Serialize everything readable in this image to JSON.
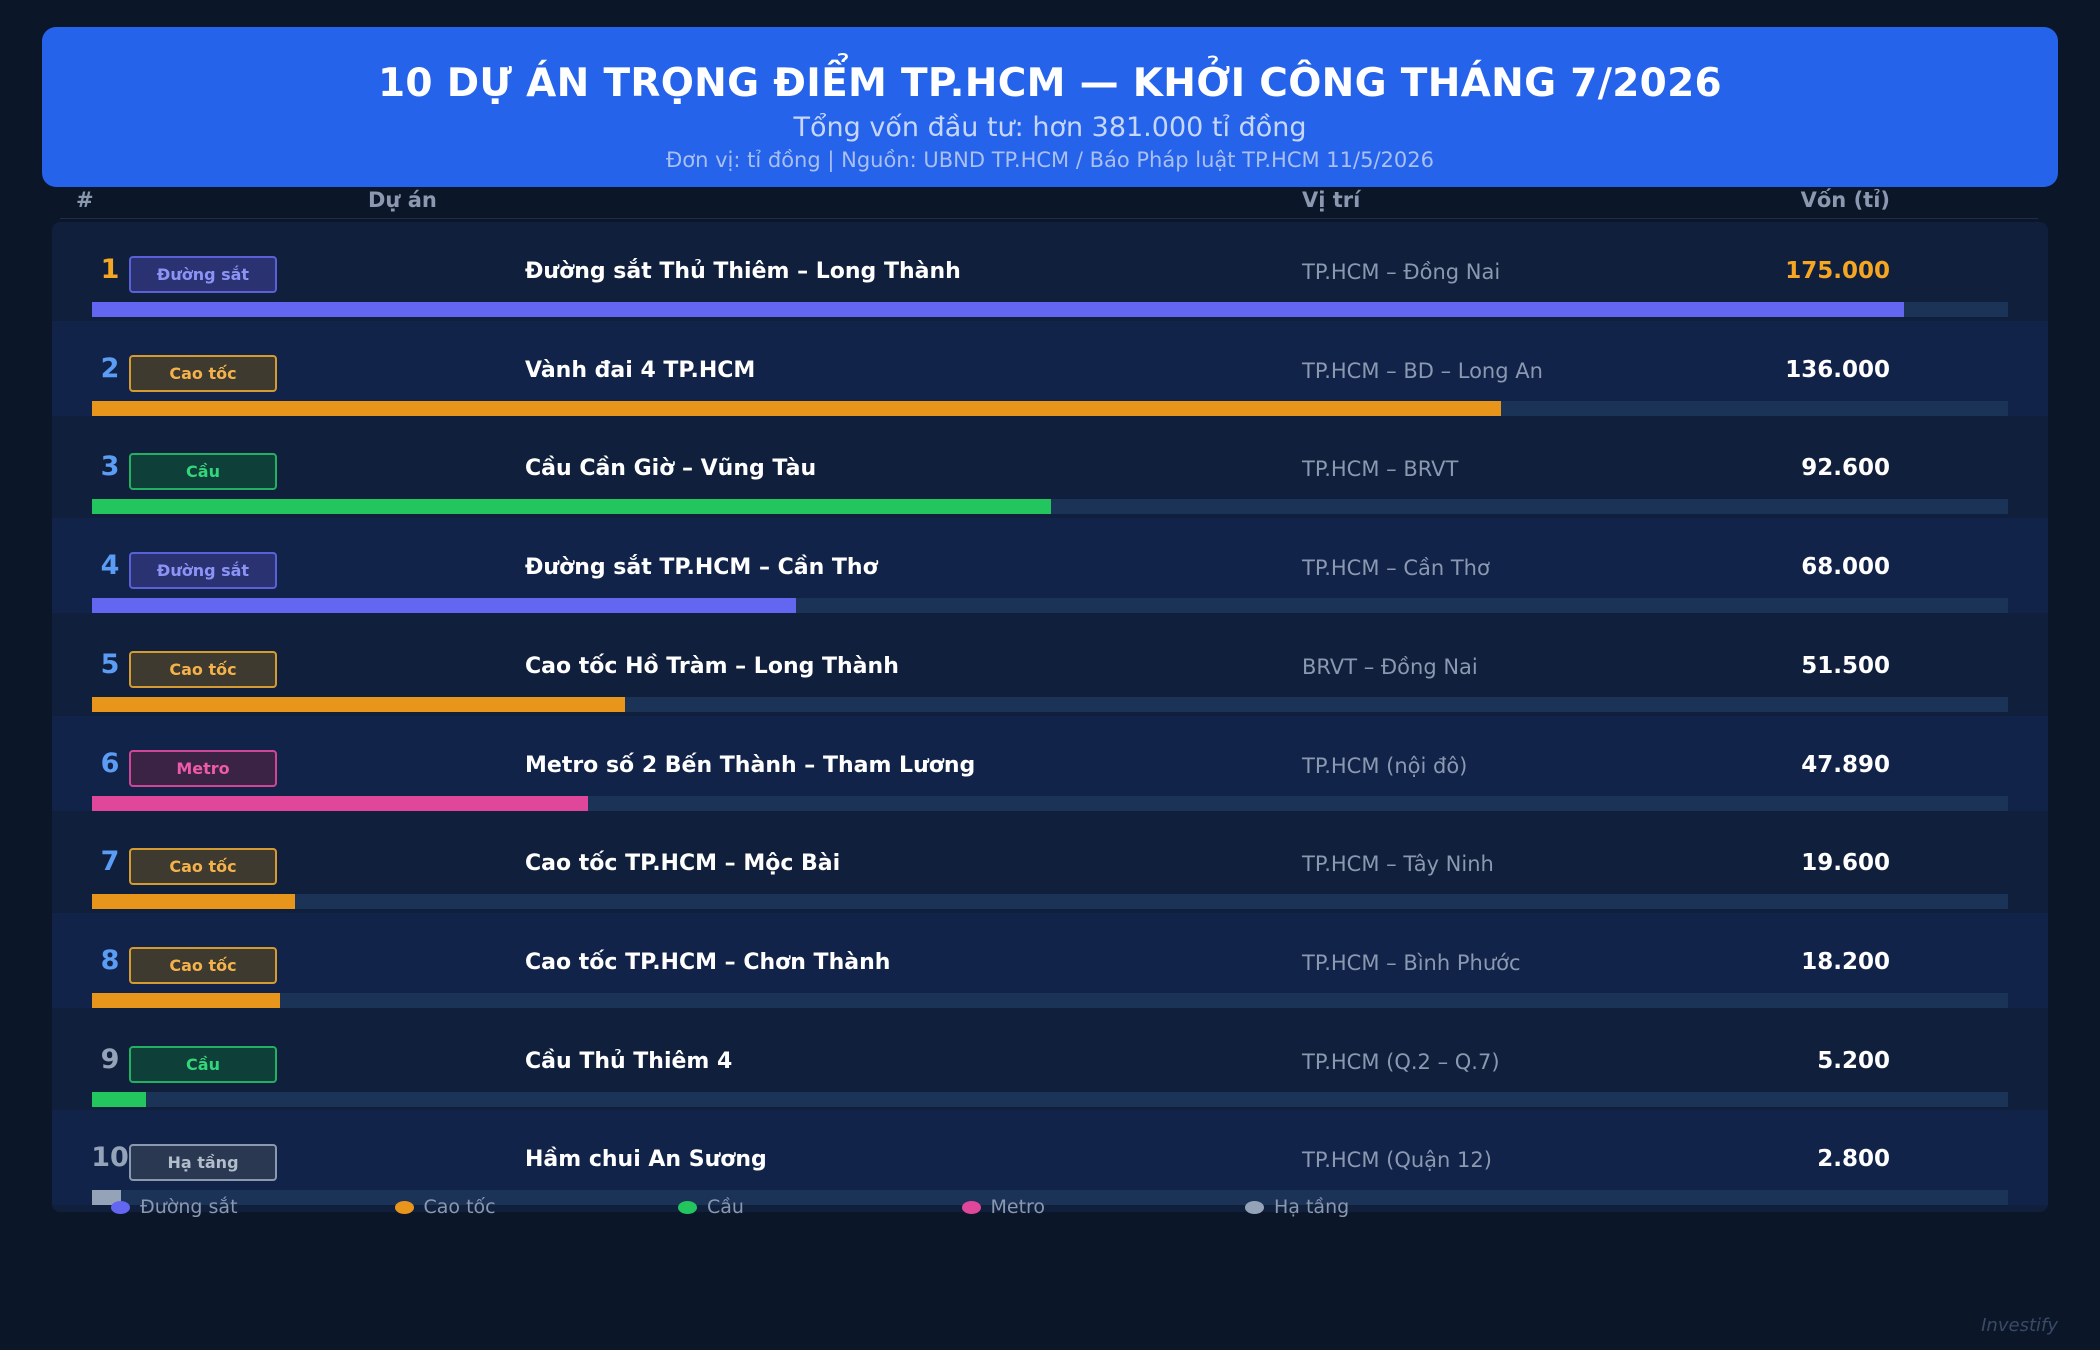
{
  "header": {
    "title": "10 DỰ ÁN TRỌNG ĐIỂM TP.HCM — KHỞI CÔNG THÁNG 7/2026",
    "subtitle": "Tổng vốn đầu tư: hơn 381.000 tỉ đồng",
    "source": "Đơn vị: tỉ đồng  |  Nguồn: UBND TP.HCM / Báo Pháp luật TP.HCM 11/5/2026"
  },
  "columns": {
    "rank": "#",
    "project": "Dự án",
    "location": "Vị trí",
    "capital": "Vốn (tỉ)"
  },
  "categories": {
    "duong_sat": {
      "label": "Đường sắt",
      "color": "#6366f1",
      "text": "#8b93f5",
      "bg": "#2a3272",
      "border": "#5a61d8"
    },
    "cao_toc": {
      "label": "Cao tốc",
      "color": "#e8951c",
      "text": "#f4b24a",
      "bg": "#3f3a30",
      "border": "#d59a30"
    },
    "cau": {
      "label": "Cầu",
      "color": "#22c55e",
      "text": "#34d67a",
      "bg": "#0f3f39",
      "border": "#22b061"
    },
    "metro": {
      "label": "Metro",
      "color": "#e0479b",
      "text": "#ec5aa8",
      "bg": "#3b2345",
      "border": "#cf4794"
    },
    "ha_tang": {
      "label": "Hạ tầng",
      "color": "#94a3b8",
      "text": "#b2bdcc",
      "bg": "#2b3851",
      "border": "#8a99b0"
    }
  },
  "chart_data": {
    "type": "bar",
    "orientation": "horizontal",
    "title": "10 DỰ ÁN TRỌNG ĐIỂM TP.HCM — KHỞI CÔNG THÁNG 7/2026",
    "unit": "tỉ đồng",
    "xlim": [
      0,
      185000
    ],
    "legend_position": "bottom",
    "rows": [
      {
        "rank": "1",
        "category": "duong_sat",
        "badge": "Đường sắt",
        "name": "Đường sắt Thủ Thiêm – Long Thành",
        "location": "TP.HCM – Đồng Nai",
        "value": 175000,
        "value_label": "175.000"
      },
      {
        "rank": "2",
        "category": "cao_toc",
        "badge": "Cao tốc",
        "name": "Vành đai 4 TP.HCM",
        "location": "TP.HCM – BD – Long An",
        "value": 136000,
        "value_label": "136.000"
      },
      {
        "rank": "3",
        "category": "cau",
        "badge": "Cầu",
        "name": "Cầu Cần Giờ – Vũng Tàu",
        "location": "TP.HCM – BRVT",
        "value": 92600,
        "value_label": "92.600"
      },
      {
        "rank": "4",
        "category": "duong_sat",
        "badge": "Đường sắt",
        "name": "Đường sắt TP.HCM – Cần Thơ",
        "location": "TP.HCM – Cần Thơ",
        "value": 68000,
        "value_label": "68.000"
      },
      {
        "rank": "5",
        "category": "cao_toc",
        "badge": "Cao tốc",
        "name": "Cao tốc Hồ Tràm – Long Thành",
        "location": "BRVT – Đồng Nai",
        "value": 51500,
        "value_label": "51.500"
      },
      {
        "rank": "6",
        "category": "metro",
        "badge": "Metro",
        "name": "Metro số 2 Bến Thành – Tham Lương",
        "location": "TP.HCM (nội đô)",
        "value": 47890,
        "value_label": "47.890"
      },
      {
        "rank": "7",
        "category": "cao_toc",
        "badge": "Cao tốc",
        "name": "Cao tốc TP.HCM – Mộc Bài",
        "location": "TP.HCM – Tây Ninh",
        "value": 19600,
        "value_label": "19.600"
      },
      {
        "rank": "8",
        "category": "cao_toc",
        "badge": "Cao tốc",
        "name": "Cao tốc TP.HCM – Chơn Thành",
        "location": "TP.HCM – Bình Phước",
        "value": 18200,
        "value_label": "18.200"
      },
      {
        "rank": "9",
        "category": "cau",
        "badge": "Cầu",
        "name": "Cầu Thủ Thiêm 4",
        "location": "TP.HCM (Q.2 – Q.7)",
        "value": 5200,
        "value_label": "5.200"
      },
      {
        "rank": "10",
        "category": "ha_tang",
        "badge": "Hạ tầng",
        "name": "Hầm chui An Sương",
        "location": "TP.HCM (Quận 12)",
        "value": 2800,
        "value_label": "2.800"
      }
    ]
  },
  "rank_colors": {
    "top": "#f5a623",
    "mid": "#5b9cf5",
    "low": "#94a3b8"
  },
  "highlight_value_color": "#f5a623",
  "legend": [
    {
      "key": "duong_sat",
      "label": "Đường sắt"
    },
    {
      "key": "cao_toc",
      "label": "Cao tốc"
    },
    {
      "key": "cau",
      "label": "Cầu"
    },
    {
      "key": "metro",
      "label": "Metro"
    },
    {
      "key": "ha_tang",
      "label": "Hạ tầng"
    }
  ],
  "watermark": "Investify"
}
